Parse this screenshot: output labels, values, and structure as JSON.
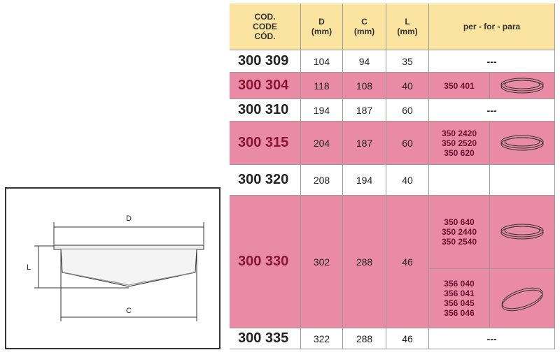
{
  "diagram": {
    "labels": {
      "d": "D",
      "l": "L",
      "c": "C"
    }
  },
  "table": {
    "header": {
      "code": [
        "COD.",
        "CODE",
        "CÓD."
      ],
      "d": [
        "D",
        "(mm)"
      ],
      "c": [
        "C",
        "(mm)"
      ],
      "l": [
        "L",
        "(mm)"
      ],
      "for": "per - for - para"
    },
    "rows": [
      {
        "code": "300 309",
        "d": 104,
        "c": 94,
        "l": 35,
        "for": "---"
      },
      {
        "code": "300 304",
        "d": 118,
        "c": 108,
        "l": 40,
        "for": [
          [
            "350 401"
          ]
        ]
      },
      {
        "code": "300 310",
        "d": 194,
        "c": 187,
        "l": 60,
        "for": "---"
      },
      {
        "code": "300 315",
        "d": 204,
        "c": 187,
        "l": 60,
        "for": [
          [
            "350 2420",
            "350 2520",
            "350 620"
          ]
        ]
      },
      {
        "code": "300 320",
        "d": 208,
        "c": 194,
        "l": 40,
        "for": []
      },
      {
        "code": "300 330",
        "d": 302,
        "c": 288,
        "l": 46,
        "for": [
          [
            "350 640",
            "350 2440",
            "350 2540"
          ],
          [
            "356 040",
            "356 041",
            "356 045",
            "356 046"
          ]
        ]
      },
      {
        "code": "300 335",
        "d": 322,
        "c": 288,
        "l": 46,
        "for": "---"
      }
    ]
  }
}
